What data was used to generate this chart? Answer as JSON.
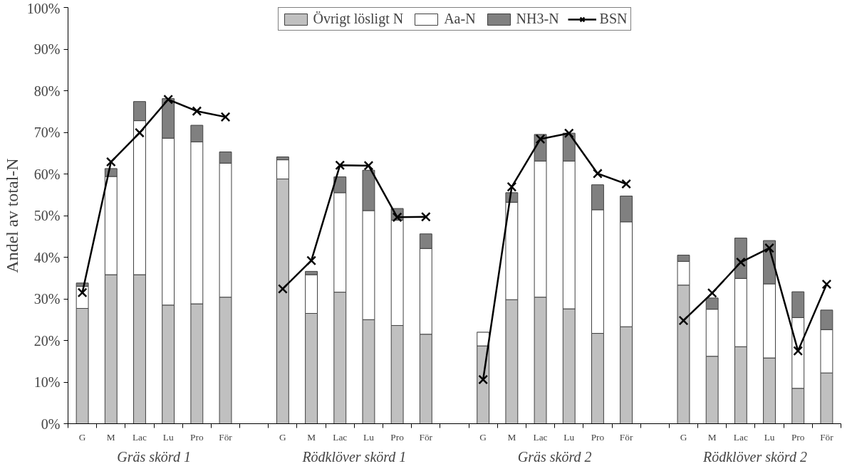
{
  "chart_data": {
    "type": "bar",
    "stacked": true,
    "ylabel": "Andel av total-N",
    "categories": [
      "G",
      "M",
      "Lac",
      "Lu",
      "Pro",
      "För",
      null,
      "G",
      "M",
      "Lac",
      "Lu",
      "Pro",
      "För",
      null,
      "G",
      "M",
      "Lac",
      "Lu",
      "Pro",
      "För",
      null,
      "G",
      "M",
      "Lac",
      "Lu",
      "Pro",
      "För"
    ],
    "series": [
      {
        "name": "Övrigt lösligt N",
        "color": "#c0c0c0",
        "values": [
          27.7,
          35.8,
          35.8,
          28.5,
          28.8,
          30.4,
          null,
          58.8,
          26.5,
          31.6,
          25.0,
          23.6,
          21.5,
          null,
          18.7,
          29.8,
          30.4,
          27.6,
          21.7,
          23.3,
          null,
          33.3,
          16.2,
          18.5,
          15.8,
          8.5,
          12.2
        ]
      },
      {
        "name": "Aa-N",
        "color": "#ffffff",
        "values": [
          5.3,
          23.6,
          37.0,
          40.1,
          38.9,
          32.2,
          null,
          4.6,
          9.3,
          23.9,
          26.2,
          25.3,
          20.6,
          null,
          3.3,
          23.4,
          32.7,
          35.5,
          29.7,
          25.2,
          null,
          5.7,
          11.3,
          16.4,
          17.8,
          17.0,
          10.4
        ]
      },
      {
        "name": "NH3-N",
        "color": "#808080",
        "values": [
          0.8,
          1.9,
          4.6,
          9.5,
          4.0,
          2.7,
          null,
          0.7,
          0.8,
          3.8,
          9.7,
          2.8,
          3.5,
          null,
          0,
          2.3,
          6.4,
          6.7,
          6.0,
          6.2,
          null,
          1.5,
          2.7,
          9.7,
          10.4,
          6.2,
          4.7
        ]
      },
      {
        "name": "BSN",
        "type": "line",
        "color": "#000000",
        "marker": "cross",
        "line_style": "solid",
        "values": [
          31.5,
          62.9,
          69.9,
          77.9,
          75.1,
          73.7,
          null,
          32.4,
          39.2,
          62.1,
          62.0,
          49.6,
          49.7,
          null,
          10.6,
          56.9,
          68.4,
          69.8,
          60.1,
          57.6,
          null,
          24.8,
          31.4,
          38.8,
          42.2,
          17.5,
          33.5
        ]
      }
    ],
    "ylim": [
      0,
      100
    ],
    "yticks": [
      {
        "value": 0,
        "label": "0%"
      },
      {
        "value": 10,
        "label": "10%"
      },
      {
        "value": 20,
        "label": "20%"
      },
      {
        "value": 30,
        "label": "30%"
      },
      {
        "value": 40,
        "label": "40%"
      },
      {
        "value": 50,
        "label": "50%"
      },
      {
        "value": 60,
        "label": "60%"
      },
      {
        "value": 70,
        "label": "70%"
      },
      {
        "value": 80,
        "label": "80%"
      },
      {
        "value": 90,
        "label": "90%"
      },
      {
        "value": 100,
        "label": "100%"
      }
    ],
    "annotations": [
      "Gräs skörd 1",
      "Rödklöver skörd 1",
      "Gräs skörd 2",
      "Rödklöver skörd 2"
    ],
    "grid": false,
    "legend": "top"
  }
}
